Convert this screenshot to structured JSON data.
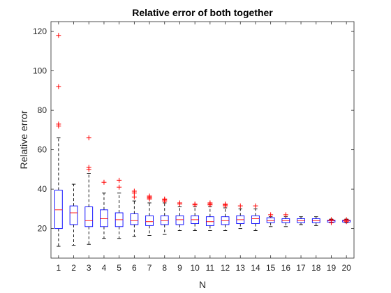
{
  "chart_data": {
    "type": "boxplot",
    "title": "Relative error of both together",
    "xlabel": "N",
    "ylabel": "Relative error",
    "ylim": [
      5,
      125
    ],
    "yticks": [
      20,
      40,
      60,
      80,
      100,
      120
    ],
    "grid": false,
    "colors": {
      "box": "#0000ff",
      "median": "#ff0000",
      "whisker": "#000000",
      "outlier": "#ff0000",
      "axis": "#262626"
    },
    "categories": [
      "1",
      "2",
      "3",
      "4",
      "5",
      "6",
      "7",
      "8",
      "9",
      "10",
      "11",
      "12",
      "13",
      "14",
      "15",
      "16",
      "17",
      "18",
      "19",
      "20"
    ],
    "boxes": [
      {
        "n": 1,
        "q1": 20,
        "median": 29.5,
        "q3": 39.5,
        "whislo": 11,
        "whishi": 66,
        "outliers": [
          72,
          73,
          92,
          118
        ]
      },
      {
        "n": 2,
        "q1": 22,
        "median": 28,
        "q3": 31.5,
        "whislo": 11.5,
        "whishi": 42.5,
        "outliers": []
      },
      {
        "n": 3,
        "q1": 21,
        "median": 24,
        "q3": 31,
        "whislo": 12,
        "whishi": 48,
        "outliers": [
          50,
          51,
          66
        ]
      },
      {
        "n": 4,
        "q1": 21,
        "median": 25,
        "q3": 29.5,
        "whislo": 15,
        "whishi": 38,
        "outliers": [
          43.5
        ]
      },
      {
        "n": 5,
        "q1": 21,
        "median": 24.5,
        "q3": 28,
        "whislo": 15,
        "whishi": 38,
        "outliers": [
          41,
          44.5
        ]
      },
      {
        "n": 6,
        "q1": 22,
        "median": 24,
        "q3": 27.5,
        "whislo": 16,
        "whishi": 34,
        "outliers": [
          36,
          38,
          39
        ]
      },
      {
        "n": 7,
        "q1": 21.5,
        "median": 23.5,
        "q3": 26.5,
        "whislo": 16.5,
        "whishi": 33,
        "outliers": [
          35,
          35.5,
          36,
          36.5
        ]
      },
      {
        "n": 8,
        "q1": 22,
        "median": 24,
        "q3": 26.5,
        "whislo": 17,
        "whishi": 33,
        "outliers": [
          34,
          34.5,
          35
        ]
      },
      {
        "n": 9,
        "q1": 22,
        "median": 24.5,
        "q3": 26.5,
        "whislo": 19,
        "whishi": 31,
        "outliers": [
          32.5,
          33
        ]
      },
      {
        "n": 10,
        "q1": 22.5,
        "median": 24.5,
        "q3": 26.5,
        "whislo": 19,
        "whishi": 31,
        "outliers": [
          32,
          32.5
        ]
      },
      {
        "n": 11,
        "q1": 21.5,
        "median": 23.5,
        "q3": 26,
        "whislo": 19,
        "whishi": 31,
        "outliers": [
          32,
          32.5,
          33
        ]
      },
      {
        "n": 12,
        "q1": 22,
        "median": 24,
        "q3": 26,
        "whislo": 19,
        "whishi": 30.5,
        "outliers": [
          31.5,
          32,
          32.5
        ]
      },
      {
        "n": 13,
        "q1": 22.5,
        "median": 24.5,
        "q3": 26.5,
        "whislo": 20,
        "whishi": 30,
        "outliers": [
          31.5
        ]
      },
      {
        "n": 14,
        "q1": 22.5,
        "median": 25,
        "q3": 26.5,
        "whislo": 19,
        "whishi": 30,
        "outliers": [
          31.5
        ]
      },
      {
        "n": 15,
        "q1": 23,
        "median": 24,
        "q3": 25.5,
        "whislo": 21,
        "whishi": 26,
        "outliers": [
          27
        ]
      },
      {
        "n": 16,
        "q1": 23,
        "median": 24,
        "q3": 25,
        "whislo": 21,
        "whishi": 26,
        "outliers": [
          27
        ]
      },
      {
        "n": 17,
        "q1": 23,
        "median": 24,
        "q3": 25,
        "whislo": 22,
        "whishi": 26,
        "outliers": []
      },
      {
        "n": 18,
        "q1": 23,
        "median": 24,
        "q3": 25,
        "whislo": 21.5,
        "whishi": 26,
        "outliers": []
      },
      {
        "n": 19,
        "q1": 23.3,
        "median": 24,
        "q3": 24.3,
        "whislo": 23,
        "whishi": 24.8,
        "outliers": [
          23,
          24.5
        ]
      },
      {
        "n": 20,
        "q1": 23.3,
        "median": 24,
        "q3": 24.3,
        "whislo": 23,
        "whishi": 24.8,
        "outliers": [
          23.5,
          24.5
        ]
      }
    ]
  }
}
